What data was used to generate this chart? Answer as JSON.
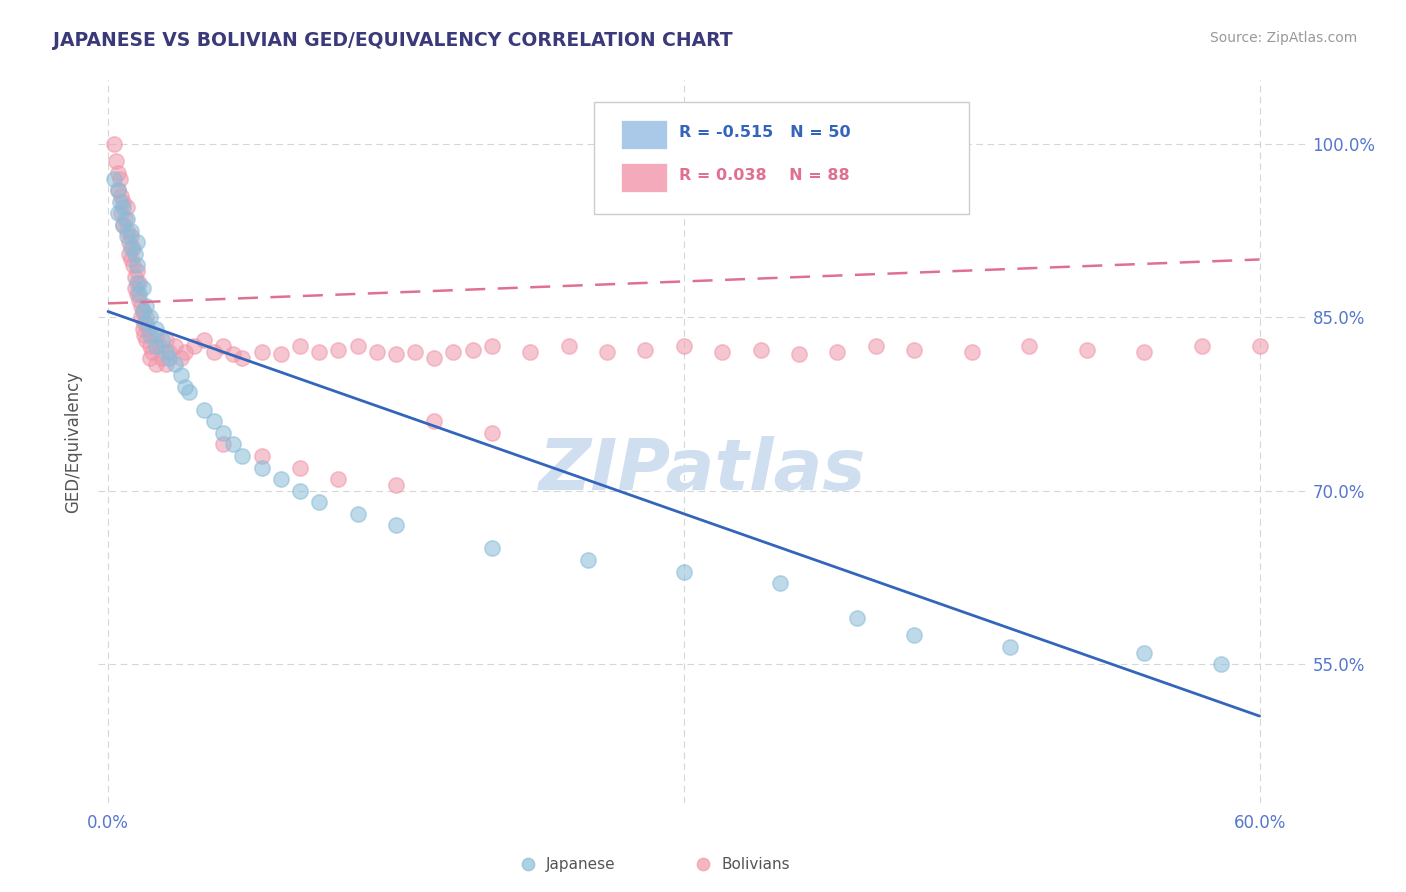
{
  "title": "JAPANESE VS BOLIVIAN GED/EQUIVALENCY CORRELATION CHART",
  "source": "Source: ZipAtlas.com",
  "ylabel": "GED/Equivalency",
  "yticks": [
    "55.0%",
    "70.0%",
    "85.0%",
    "100.0%"
  ],
  "ytick_values": [
    0.55,
    0.7,
    0.85,
    1.0
  ],
  "xtick_labels": [
    "0.0%",
    "60.0%"
  ],
  "xtick_values": [
    0.0,
    0.6
  ],
  "legend_japanese": {
    "R": "-0.515",
    "N": "50"
  },
  "legend_bolivians": {
    "R": "0.038",
    "N": "88"
  },
  "japanese_color": "#8abcd8",
  "bolivian_color": "#f097aa",
  "trend_japanese_color": "#3366bb",
  "trend_bolivian_color": "#e07090",
  "legend_jp_fill": "#aac8e8",
  "legend_bo_fill": "#f4aabb",
  "background_color": "#ffffff",
  "grid_color": "#cccccc",
  "title_color": "#3a3a7a",
  "source_color": "#999999",
  "axis_label_color": "#5577cc",
  "watermark_color": "#d0dff0",
  "watermark": "ZIPatlas",
  "xmin": -0.005,
  "xmax": 0.625,
  "ymin": 0.43,
  "ymax": 1.055,
  "japanese_points": [
    [
      0.003,
      0.97
    ],
    [
      0.005,
      0.96
    ],
    [
      0.005,
      0.94
    ],
    [
      0.006,
      0.95
    ],
    [
      0.008,
      0.945
    ],
    [
      0.008,
      0.93
    ],
    [
      0.01,
      0.935
    ],
    [
      0.01,
      0.92
    ],
    [
      0.012,
      0.925
    ],
    [
      0.012,
      0.91
    ],
    [
      0.014,
      0.905
    ],
    [
      0.015,
      0.915
    ],
    [
      0.015,
      0.895
    ],
    [
      0.015,
      0.88
    ],
    [
      0.016,
      0.87
    ],
    [
      0.018,
      0.875
    ],
    [
      0.018,
      0.855
    ],
    [
      0.02,
      0.86
    ],
    [
      0.02,
      0.845
    ],
    [
      0.022,
      0.85
    ],
    [
      0.022,
      0.835
    ],
    [
      0.025,
      0.84
    ],
    [
      0.025,
      0.825
    ],
    [
      0.028,
      0.83
    ],
    [
      0.03,
      0.82
    ],
    [
      0.032,
      0.815
    ],
    [
      0.035,
      0.81
    ],
    [
      0.038,
      0.8
    ],
    [
      0.04,
      0.79
    ],
    [
      0.042,
      0.785
    ],
    [
      0.05,
      0.77
    ],
    [
      0.055,
      0.76
    ],
    [
      0.06,
      0.75
    ],
    [
      0.065,
      0.74
    ],
    [
      0.07,
      0.73
    ],
    [
      0.08,
      0.72
    ],
    [
      0.09,
      0.71
    ],
    [
      0.1,
      0.7
    ],
    [
      0.11,
      0.69
    ],
    [
      0.13,
      0.68
    ],
    [
      0.15,
      0.67
    ],
    [
      0.2,
      0.65
    ],
    [
      0.25,
      0.64
    ],
    [
      0.3,
      0.63
    ],
    [
      0.35,
      0.62
    ],
    [
      0.39,
      0.59
    ],
    [
      0.42,
      0.575
    ],
    [
      0.47,
      0.565
    ],
    [
      0.54,
      0.56
    ],
    [
      0.58,
      0.55
    ]
  ],
  "bolivian_points": [
    [
      0.003,
      1.0
    ],
    [
      0.004,
      0.985
    ],
    [
      0.005,
      0.975
    ],
    [
      0.005,
      0.96
    ],
    [
      0.006,
      0.97
    ],
    [
      0.007,
      0.955
    ],
    [
      0.007,
      0.94
    ],
    [
      0.008,
      0.95
    ],
    [
      0.008,
      0.93
    ],
    [
      0.009,
      0.935
    ],
    [
      0.01,
      0.945
    ],
    [
      0.01,
      0.925
    ],
    [
      0.011,
      0.915
    ],
    [
      0.011,
      0.905
    ],
    [
      0.012,
      0.92
    ],
    [
      0.012,
      0.9
    ],
    [
      0.013,
      0.91
    ],
    [
      0.013,
      0.895
    ],
    [
      0.014,
      0.885
    ],
    [
      0.014,
      0.875
    ],
    [
      0.015,
      0.89
    ],
    [
      0.015,
      0.87
    ],
    [
      0.016,
      0.88
    ],
    [
      0.016,
      0.865
    ],
    [
      0.017,
      0.86
    ],
    [
      0.017,
      0.85
    ],
    [
      0.018,
      0.855
    ],
    [
      0.018,
      0.84
    ],
    [
      0.019,
      0.845
    ],
    [
      0.019,
      0.835
    ],
    [
      0.02,
      0.85
    ],
    [
      0.02,
      0.83
    ],
    [
      0.021,
      0.84
    ],
    [
      0.022,
      0.825
    ],
    [
      0.022,
      0.815
    ],
    [
      0.023,
      0.82
    ],
    [
      0.025,
      0.835
    ],
    [
      0.025,
      0.81
    ],
    [
      0.027,
      0.825
    ],
    [
      0.028,
      0.815
    ],
    [
      0.03,
      0.83
    ],
    [
      0.03,
      0.81
    ],
    [
      0.032,
      0.82
    ],
    [
      0.035,
      0.825
    ],
    [
      0.038,
      0.815
    ],
    [
      0.04,
      0.82
    ],
    [
      0.045,
      0.825
    ],
    [
      0.05,
      0.83
    ],
    [
      0.055,
      0.82
    ],
    [
      0.06,
      0.825
    ],
    [
      0.065,
      0.818
    ],
    [
      0.07,
      0.815
    ],
    [
      0.08,
      0.82
    ],
    [
      0.09,
      0.818
    ],
    [
      0.1,
      0.825
    ],
    [
      0.11,
      0.82
    ],
    [
      0.12,
      0.822
    ],
    [
      0.13,
      0.825
    ],
    [
      0.14,
      0.82
    ],
    [
      0.15,
      0.818
    ],
    [
      0.16,
      0.82
    ],
    [
      0.17,
      0.815
    ],
    [
      0.18,
      0.82
    ],
    [
      0.19,
      0.822
    ],
    [
      0.2,
      0.825
    ],
    [
      0.22,
      0.82
    ],
    [
      0.24,
      0.825
    ],
    [
      0.26,
      0.82
    ],
    [
      0.28,
      0.822
    ],
    [
      0.3,
      0.825
    ],
    [
      0.32,
      0.82
    ],
    [
      0.34,
      0.822
    ],
    [
      0.36,
      0.818
    ],
    [
      0.38,
      0.82
    ],
    [
      0.4,
      0.825
    ],
    [
      0.42,
      0.822
    ],
    [
      0.45,
      0.82
    ],
    [
      0.48,
      0.825
    ],
    [
      0.51,
      0.822
    ],
    [
      0.54,
      0.82
    ],
    [
      0.57,
      0.825
    ],
    [
      0.6,
      0.825
    ],
    [
      0.17,
      0.76
    ],
    [
      0.2,
      0.75
    ],
    [
      0.06,
      0.74
    ],
    [
      0.08,
      0.73
    ],
    [
      0.1,
      0.72
    ],
    [
      0.12,
      0.71
    ],
    [
      0.15,
      0.705
    ]
  ]
}
